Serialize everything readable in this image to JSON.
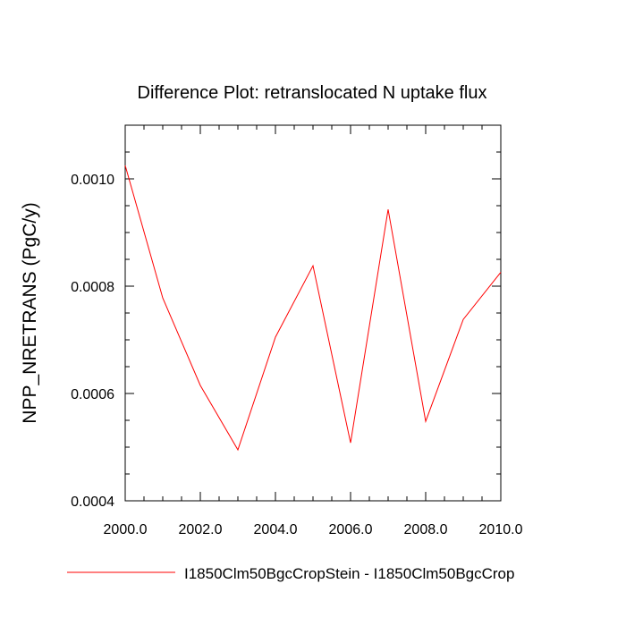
{
  "chart_data": {
    "type": "line",
    "title": "Difference Plot: retranslocated N uptake flux",
    "xlabel": "",
    "ylabel": "NPP_NRETRANS  (PgC/y)",
    "xlim": [
      2000,
      2010
    ],
    "ylim": [
      0.0004,
      0.0011
    ],
    "x_ticks": [
      2000,
      2002,
      2004,
      2006,
      2008,
      2010
    ],
    "x_tick_labels": [
      "2000.0",
      "2002.0",
      "2004.0",
      "2006.0",
      "2008.0",
      "2010.0"
    ],
    "y_ticks": [
      0.0004,
      0.0006,
      0.0008,
      0.001
    ],
    "y_tick_labels": [
      "0.0004",
      "0.0006",
      "0.0008",
      "0.0010"
    ],
    "x_minor_step": 0.5,
    "y_minor_step": 5e-05,
    "grid": false,
    "legend_position": "bottom",
    "series": [
      {
        "name": "I1850Clm50BgcCropStein - I1850Clm50BgcCrop",
        "color": "#ff0000",
        "x": [
          2000,
          2001,
          2002,
          2003,
          2004,
          2005,
          2006,
          2007,
          2008,
          2009,
          2010
        ],
        "y": [
          0.001025,
          0.000778,
          0.000615,
          0.000495,
          0.000705,
          0.000838,
          0.000508,
          0.000943,
          0.000548,
          0.000738,
          0.000826
        ]
      }
    ]
  }
}
